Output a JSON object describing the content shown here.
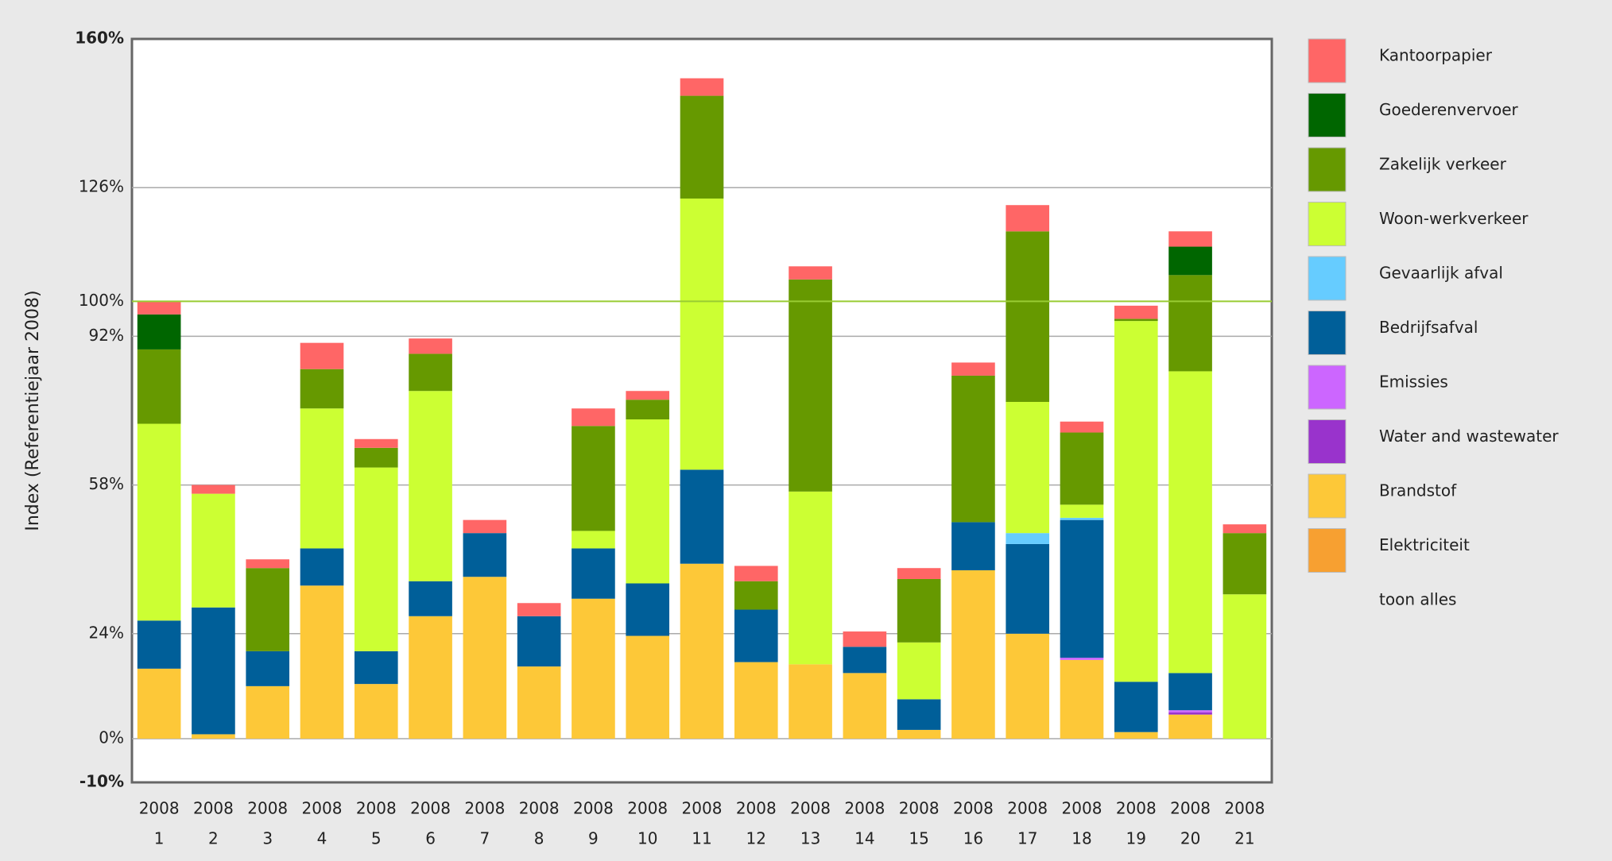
{
  "chart_data": {
    "type": "stacked_bar",
    "y_label": "Index (Referentiejaar 2008)",
    "categories": [
      [
        "2008",
        "1"
      ],
      [
        "2008",
        "2"
      ],
      [
        "2008",
        "3"
      ],
      [
        "2008",
        "4"
      ],
      [
        "2008",
        "5"
      ],
      [
        "2008",
        "6"
      ],
      [
        "2008",
        "7"
      ],
      [
        "2008",
        "8"
      ],
      [
        "2008",
        "9"
      ],
      [
        "2008",
        "10"
      ],
      [
        "2008",
        "11"
      ],
      [
        "2008",
        "12"
      ],
      [
        "2008",
        "13"
      ],
      [
        "2008",
        "14"
      ],
      [
        "2008",
        "15"
      ],
      [
        "2008",
        "16"
      ],
      [
        "2008",
        "17"
      ],
      [
        "2008",
        "18"
      ],
      [
        "2008",
        "19"
      ],
      [
        "2008",
        "20"
      ],
      [
        "2008",
        "21"
      ]
    ],
    "series": [
      {
        "name": "Elektriciteit",
        "color": "#f7a031",
        "values": [
          0,
          0,
          0,
          0,
          0,
          0,
          0,
          0,
          0,
          0,
          0,
          0,
          0,
          0,
          0,
          0,
          0,
          0,
          0,
          0,
          0
        ]
      },
      {
        "name": "Brandstof",
        "color": "#fdc838",
        "values": [
          16,
          1,
          12,
          35,
          12.5,
          28,
          37,
          16.5,
          32,
          23.5,
          40,
          17.5,
          17,
          15,
          2,
          38.5,
          24,
          18,
          1.5,
          5.5,
          0
        ]
      },
      {
        "name": "Water and wastewater",
        "color": "#9933cc",
        "values": [
          0,
          0,
          0,
          0,
          0,
          0,
          0,
          0,
          0,
          0,
          0,
          0,
          0,
          0,
          0,
          0,
          0,
          0,
          0,
          0.5,
          0
        ]
      },
      {
        "name": "Emissies",
        "color": "#cc66ff",
        "values": [
          0,
          0,
          0,
          0,
          0,
          0,
          0,
          0,
          0,
          0,
          0,
          0,
          0,
          0,
          0,
          0,
          0,
          0.5,
          0,
          0.5,
          0
        ]
      },
      {
        "name": "Bedrijfsafval",
        "color": "#005f99",
        "values": [
          11,
          29,
          8,
          8.5,
          7.5,
          8,
          10,
          11.5,
          11.5,
          12,
          21.5,
          12,
          0,
          6,
          7,
          11,
          20.5,
          31.5,
          11.5,
          8.5,
          0
        ]
      },
      {
        "name": "Gevaarlijk afval",
        "color": "#66ccff",
        "values": [
          0,
          0,
          0,
          0,
          0,
          0,
          0,
          0,
          0,
          0,
          0,
          0,
          0,
          0,
          0,
          0,
          2.5,
          0.5,
          0,
          0,
          0
        ]
      },
      {
        "name": "Woon-werkverkeer",
        "color": "#ccff33",
        "values": [
          45,
          26,
          0,
          32,
          42,
          43.5,
          0,
          0,
          4,
          37.5,
          62,
          0,
          39.5,
          0,
          13,
          0,
          30,
          3,
          82.5,
          69,
          33
        ]
      },
      {
        "name": "Zakelijk verkeer",
        "color": "#669900",
        "values": [
          17,
          0,
          19,
          9,
          4.5,
          8.5,
          0,
          0,
          24,
          4.5,
          23.5,
          6.5,
          48.5,
          0,
          14.5,
          33.5,
          39,
          16.5,
          0.5,
          22,
          14
        ]
      },
      {
        "name": "Goederenvervoer",
        "color": "#006600",
        "values": [
          8,
          0,
          0,
          0,
          0,
          0,
          0,
          0,
          0,
          0,
          0,
          0,
          0,
          0,
          0,
          0,
          0,
          0,
          0,
          6.5,
          0
        ]
      },
      {
        "name": "Kantoorpapier",
        "color": "#ff6666",
        "values": [
          3,
          2,
          2,
          6,
          2,
          3.5,
          3,
          3,
          4,
          2,
          4,
          3.5,
          3,
          3.5,
          2.5,
          3,
          6,
          2.5,
          3,
          3.5,
          2
        ]
      }
    ],
    "ylim": [
      -10,
      160
    ],
    "yticks": [
      {
        "value": -10,
        "label": "-10%"
      },
      {
        "value": 0,
        "label": "0%"
      },
      {
        "value": 24,
        "label": "24%"
      },
      {
        "value": 58,
        "label": "58%"
      },
      {
        "value": 92,
        "label": "92%"
      },
      {
        "value": 126,
        "label": "126%"
      },
      {
        "value": 160,
        "label": "160%"
      }
    ],
    "reference": {
      "value": 100,
      "label": "100%",
      "color": "#99cc33"
    },
    "grid": true,
    "legend_action": "toon alles"
  }
}
